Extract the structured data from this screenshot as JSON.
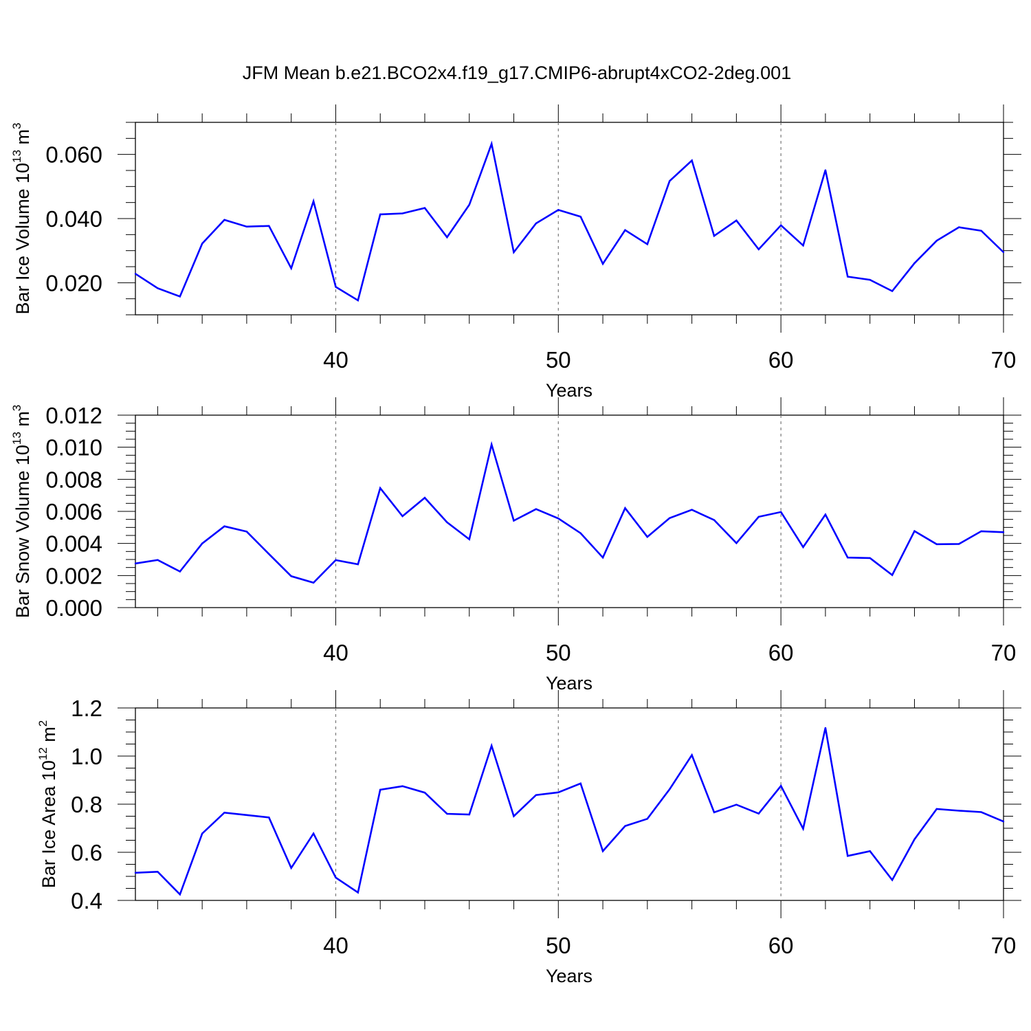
{
  "figure": {
    "title": "JFM Mean b.e21.BCO2x4.f19_g17.CMIP6-abrupt4xCO2-2deg.001"
  },
  "chart_data": [
    {
      "type": "line",
      "ylabel": "Bar Ice Volume 10",
      "ylabel_exponent": "13",
      "ylabel_unit": "m",
      "ylabel_unit_exponent": "3",
      "xlabel": "Years",
      "xlim": [
        31,
        70
      ],
      "ylim": [
        0.01,
        0.07
      ],
      "x_ticks": [
        40,
        50,
        60,
        70
      ],
      "x_tick_labels": [
        "40",
        "50",
        "60",
        "70"
      ],
      "y_ticks": [
        0.02,
        0.04,
        0.06
      ],
      "y_tick_labels": [
        "0.020",
        "0.040",
        "0.060"
      ],
      "y_minor_step": 0.005,
      "grid_x_dashed": [
        40,
        50,
        60
      ],
      "color": "#0000ff",
      "series": [
        {
          "name": "Bar Ice Volume",
          "x": [
            31,
            32,
            33,
            34,
            35,
            36,
            37,
            38,
            39,
            40,
            41,
            42,
            43,
            44,
            45,
            46,
            47,
            48,
            49,
            50,
            51,
            52,
            53,
            54,
            55,
            56,
            57,
            58,
            59,
            60,
            61,
            62,
            63,
            64,
            65,
            66,
            67,
            68,
            69,
            70
          ],
          "values": [
            0.0228,
            0.0183,
            0.0157,
            0.0322,
            0.0396,
            0.0375,
            0.0377,
            0.0245,
            0.0454,
            0.0187,
            0.0145,
            0.0413,
            0.0416,
            0.0433,
            0.0342,
            0.0443,
            0.0633,
            0.0295,
            0.0385,
            0.0427,
            0.0406,
            0.0259,
            0.0364,
            0.032,
            0.0517,
            0.0581,
            0.0346,
            0.0394,
            0.0304,
            0.0379,
            0.0316,
            0.0551,
            0.0219,
            0.0209,
            0.0174,
            0.0261,
            0.0331,
            0.0373,
            0.0362,
            0.0295
          ]
        }
      ]
    },
    {
      "type": "line",
      "ylabel": "Bar Snow Volume 10",
      "ylabel_exponent": "13",
      "ylabel_unit": "m",
      "ylabel_unit_exponent": "3",
      "xlabel": "Years",
      "xlim": [
        31,
        70
      ],
      "ylim": [
        0.0,
        0.012
      ],
      "x_ticks": [
        40,
        50,
        60,
        70
      ],
      "x_tick_labels": [
        "40",
        "50",
        "60",
        "70"
      ],
      "y_ticks": [
        0.0,
        0.002,
        0.004,
        0.006,
        0.008,
        0.01,
        0.012
      ],
      "y_tick_labels": [
        "0.000",
        "0.002",
        "0.004",
        "0.006",
        "0.008",
        "0.010",
        "0.012"
      ],
      "y_minor_step": 0.0005,
      "grid_x_dashed": [
        40,
        50,
        60
      ],
      "color": "#0000ff",
      "series": [
        {
          "name": "Bar Snow Volume",
          "x": [
            31,
            32,
            33,
            34,
            35,
            36,
            37,
            38,
            39,
            40,
            41,
            42,
            43,
            44,
            45,
            46,
            47,
            48,
            49,
            50,
            51,
            52,
            53,
            54,
            55,
            56,
            57,
            58,
            59,
            60,
            61,
            62,
            63,
            64,
            65,
            66,
            67,
            68,
            69,
            70
          ],
          "values": [
            0.00275,
            0.00297,
            0.00225,
            0.004,
            0.00507,
            0.00474,
            0.00334,
            0.00196,
            0.00155,
            0.00296,
            0.0027,
            0.00745,
            0.0057,
            0.00685,
            0.00532,
            0.00426,
            0.01017,
            0.00542,
            0.00614,
            0.00556,
            0.00464,
            0.00312,
            0.0062,
            0.00441,
            0.00558,
            0.0061,
            0.00546,
            0.00402,
            0.00566,
            0.00596,
            0.00377,
            0.0058,
            0.00312,
            0.00309,
            0.00203,
            0.00477,
            0.00395,
            0.00397,
            0.00476,
            0.0047
          ]
        }
      ]
    },
    {
      "type": "line",
      "ylabel": "Bar Ice Area 10",
      "ylabel_exponent": "12",
      "ylabel_unit": "m",
      "ylabel_unit_exponent": "2",
      "xlabel": "Years",
      "xlim": [
        31,
        70
      ],
      "ylim": [
        0.4,
        1.2
      ],
      "x_ticks": [
        40,
        50,
        60,
        70
      ],
      "x_tick_labels": [
        "40",
        "50",
        "60",
        "70"
      ],
      "y_ticks": [
        0.4,
        0.6,
        0.8,
        1.0,
        1.2
      ],
      "y_tick_labels": [
        "0.4",
        "0.6",
        "0.8",
        "1.0",
        "1.2"
      ],
      "y_minor_step": 0.05,
      "grid_x_dashed": [
        40,
        50,
        60
      ],
      "color": "#0000ff",
      "series": [
        {
          "name": "Bar Ice Area",
          "x": [
            31,
            32,
            33,
            34,
            35,
            36,
            37,
            38,
            39,
            40,
            41,
            42,
            43,
            44,
            45,
            46,
            47,
            48,
            49,
            50,
            51,
            52,
            53,
            54,
            55,
            56,
            57,
            58,
            59,
            60,
            61,
            62,
            63,
            64,
            65,
            66,
            67,
            68,
            69,
            70
          ],
          "values": [
            0.515,
            0.519,
            0.425,
            0.678,
            0.765,
            0.755,
            0.745,
            0.535,
            0.678,
            0.495,
            0.433,
            0.86,
            0.875,
            0.848,
            0.76,
            0.757,
            1.043,
            0.75,
            0.838,
            0.849,
            0.886,
            0.605,
            0.709,
            0.739,
            0.862,
            1.004,
            0.766,
            0.798,
            0.761,
            0.876,
            0.698,
            1.117,
            0.585,
            0.605,
            0.485,
            0.654,
            0.78,
            0.773,
            0.767,
            0.728
          ]
        }
      ]
    }
  ]
}
